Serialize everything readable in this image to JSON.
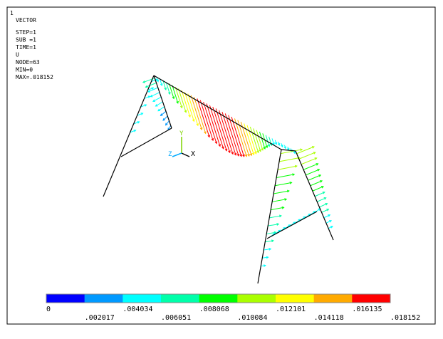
{
  "window_number": "1",
  "info": [
    "VECTOR",
    "STEP=1",
    "SUB =1",
    "TIME=1",
    "U",
    "NODE=63",
    "MIN=0",
    "MAX=.018152"
  ],
  "triad": {
    "x": "X",
    "y": "Y",
    "z": "Z"
  },
  "legend": {
    "colors": [
      "#0000ff",
      "#0099ff",
      "#00ffff",
      "#00ffaa",
      "#00ff00",
      "#aaff00",
      "#ffff00",
      "#ffaa00",
      "#ff0000"
    ],
    "labels": [
      "0",
      ".002017",
      ".004034",
      ".006051",
      ".008068",
      ".010084",
      ".012101",
      ".014118",
      ".016135",
      ".018152"
    ]
  }
}
